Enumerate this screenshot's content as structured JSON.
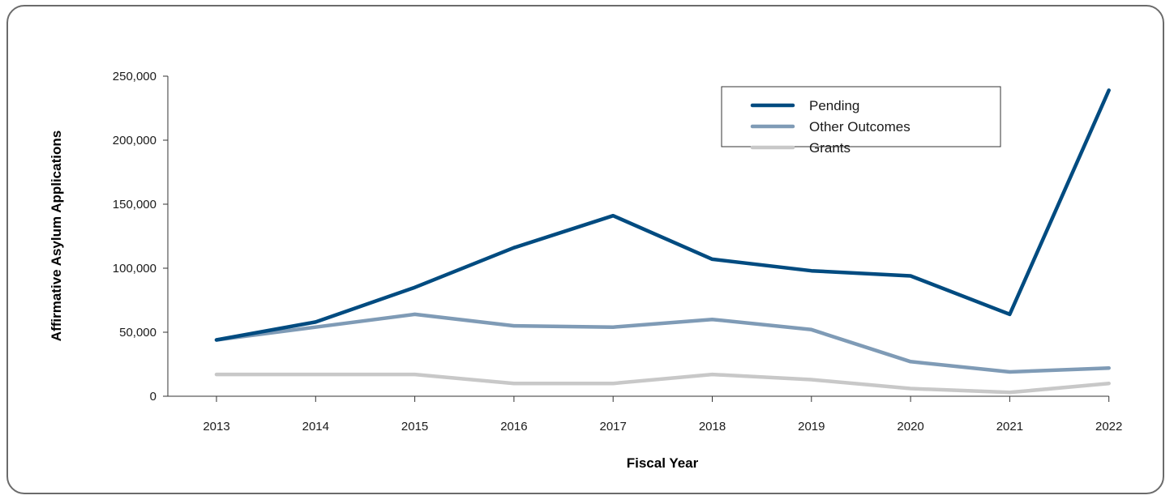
{
  "chart_data": {
    "type": "line",
    "title": "",
    "xlabel": "Fiscal Year",
    "ylabel": "Affirmative Asylum Applications",
    "categories": [
      "2013",
      "2014",
      "2015",
      "2016",
      "2017",
      "2018",
      "2019",
      "2020",
      "2021",
      "2022"
    ],
    "ylim": [
      0,
      250000
    ],
    "yticks": [
      0,
      50000,
      100000,
      150000,
      200000,
      250000
    ],
    "ytick_labels": [
      "0",
      "50,000",
      "100,000",
      "150,000",
      "200,000",
      "250,000"
    ],
    "grid": false,
    "legend_position": "top-right",
    "series": [
      {
        "name": "Pending",
        "color": "#004b80",
        "values": [
          44000,
          58000,
          85000,
          116000,
          141000,
          107000,
          98000,
          94000,
          64000,
          239000
        ]
      },
      {
        "name": "Other Outcomes",
        "color": "#7f9bb6",
        "values": [
          44000,
          54000,
          64000,
          55000,
          54000,
          60000,
          52000,
          27000,
          19000,
          22000
        ]
      },
      {
        "name": "Grants",
        "color": "#c8c8c8",
        "values": [
          17000,
          17000,
          17000,
          10000,
          10000,
          17000,
          13000,
          6000,
          3000,
          10000
        ]
      }
    ]
  }
}
